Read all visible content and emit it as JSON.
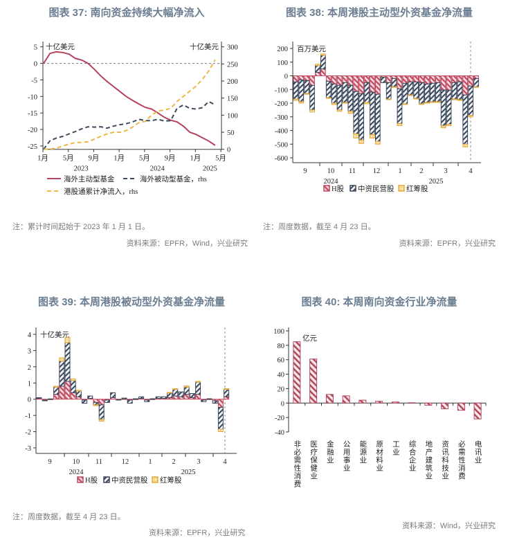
{
  "titles": [
    "图表 37: 南向资金持续大幅净流入",
    "图表 38: 本周港股主动型外资基金净流量",
    "图表 39: 本周港股被动型外资基金净流量",
    "图表 40: 本周南向资金行业净流量"
  ],
  "notes": {
    "c37_note": "注：累计时间起始于 2023 年 1 月 1 日。",
    "c37_source": "资料来源：EPFR，Wind，兴业研究",
    "c38_note": "注：周度数据，截至 4 月 23 日。",
    "c38_source": "资料来源：EPFR，兴业研究",
    "c39_note": "注：周度数据，截至 4 月 23 日。",
    "c39_source": "资料来源：EPFR，兴业研究",
    "c40_source": "资料来源：Wind，兴业研究"
  },
  "colors": {
    "title": "#6b7d91",
    "red": "#b5415a",
    "navy": "#3d4a5e",
    "gold": "#f0b545",
    "h_share": "#c0485e",
    "mainland_private": "#3b4556",
    "red_chip": "#e0a83a"
  },
  "chart_data": [
    {
      "type": "line",
      "unit_left": "十亿美元",
      "unit_right": "十亿美元",
      "ylim_left": [
        -26,
        5
      ],
      "yticks_left": [
        5,
        0,
        -5,
        -10,
        -15,
        -20,
        -25
      ],
      "ylim_right": [
        0,
        300
      ],
      "yticks_right": [
        300,
        250,
        200,
        150,
        100,
        50,
        0
      ],
      "x": [
        "2023-01",
        "2023-02",
        "2023-03",
        "2023-04",
        "2023-05",
        "2023-06",
        "2023-07",
        "2023-08",
        "2023-09",
        "2023-10",
        "2023-11",
        "2023-12",
        "2024-01",
        "2024-02",
        "2024-03",
        "2024-04",
        "2024-05",
        "2024-06",
        "2024-07",
        "2024-08",
        "2024-09",
        "2024-10",
        "2024-11",
        "2024-12",
        "2025-01",
        "2025-02",
        "2025-03",
        "2025-04"
      ],
      "xtick_labels": [
        "1月",
        "5月",
        "9月",
        "1月",
        "5月",
        "9月",
        "1月",
        "5月"
      ],
      "year_labels": [
        "2023",
        "2024",
        "2025"
      ],
      "series": [
        {
          "name": "海外主动型基金",
          "axis": "left",
          "style": "solid",
          "values": [
            0,
            3,
            3.5,
            3.3,
            2.8,
            1.5,
            1.0,
            0,
            -1.8,
            -3.8,
            -5.5,
            -7,
            -8.5,
            -10,
            -11.2,
            -12.3,
            -13.3,
            -13.8,
            -15,
            -16.3,
            -17.2,
            -17.7,
            -19,
            -20.8,
            -21.5,
            -22.5,
            -23.5,
            -24.8
          ]
        },
        {
          "name": "海外被动型基金，rhs",
          "axis": "right",
          "style": "dashed",
          "values": [
            0,
            25,
            33,
            38,
            45,
            52,
            60,
            66,
            65,
            66,
            62,
            68,
            72,
            75,
            80,
            88,
            84,
            84,
            88,
            83,
            84,
            120,
            130,
            120,
            118,
            122,
            140,
            130
          ]
        },
        {
          "name": "港股通累计净流入，rhs",
          "axis": "right",
          "style": "dashed",
          "values": [
            0,
            1,
            3,
            10,
            15,
            20,
            20,
            22,
            30,
            38,
            45,
            50,
            50,
            55,
            65,
            78,
            82,
            100,
            112,
            115,
            120,
            140,
            155,
            170,
            185,
            205,
            230,
            262
          ]
        }
      ],
      "zero_line": true,
      "legend": "bottom"
    },
    {
      "type": "bar",
      "stacked": true,
      "unit": "百万美元",
      "ylim": [
        -600,
        200
      ],
      "yticks": [
        200,
        100,
        0,
        -100,
        -200,
        -300,
        -400,
        -500,
        -600
      ],
      "month_labels": [
        "9",
        "10",
        "11",
        "12",
        "1",
        "2",
        "3",
        "4"
      ],
      "year_labels": [
        "2024",
        "2025"
      ],
      "series": [
        {
          "name": "H股",
          "values": [
            -45,
            -30,
            -35,
            -70,
            25,
            50,
            -40,
            -60,
            -70,
            -50,
            -70,
            -115,
            -130,
            -50,
            -120,
            -135,
            -10,
            -50,
            -20,
            -95,
            -55,
            -45,
            -45,
            -50,
            -60,
            -55,
            -50,
            -105,
            -105,
            -50,
            -45,
            -140,
            -75,
            -20
          ]
        },
        {
          "name": "中资民营股",
          "values": [
            -125,
            -160,
            -95,
            -180,
            50,
            100,
            -120,
            -140,
            -180,
            -145,
            -190,
            -310,
            -340,
            -145,
            -310,
            -345,
            -40,
            -120,
            -60,
            -255,
            -150,
            -95,
            -120,
            -155,
            -135,
            -135,
            -140,
            -260,
            -250,
            -120,
            -130,
            -360,
            -215,
            -60
          ]
        },
        {
          "name": "红筹股",
          "values": [
            -10,
            -10,
            -5,
            -15,
            10,
            10,
            -5,
            -10,
            -10,
            -5,
            -15,
            -30,
            -25,
            -10,
            -25,
            -20,
            0,
            -5,
            -5,
            -15,
            -5,
            -5,
            -5,
            -5,
            -5,
            -5,
            -5,
            -15,
            -10,
            -5,
            -5,
            -20,
            -10,
            -5
          ]
        }
      ],
      "legend": "bottom"
    },
    {
      "type": "bar",
      "stacked": true,
      "unit": "十亿美元",
      "ylim": [
        -3,
        4
      ],
      "yticks": [
        4,
        3,
        2,
        1,
        0,
        -1,
        -2,
        -3
      ],
      "month_labels": [
        "9",
        "10",
        "11",
        "12",
        "1",
        "2",
        "3",
        "4"
      ],
      "year_labels": [
        "2024",
        "2025"
      ],
      "series": [
        {
          "name": "H股",
          "values": [
            0.05,
            -0.05,
            0.01,
            0.3,
            0.8,
            1.1,
            0.4,
            0.15,
            -0.05,
            0.05,
            -0.2,
            -0.35,
            -0.05,
            0.1,
            -0.02,
            0.02,
            -0.05,
            0.01,
            0.05,
            -0.05,
            0.01,
            0.05,
            0.05,
            0.1,
            0.2,
            0.15,
            0.3,
            0.1,
            0.3,
            -0.05,
            0.01,
            -0.1,
            -0.5,
            0.15
          ]
        },
        {
          "name": "中资民营股",
          "values": [
            0.05,
            -0.05,
            0.01,
            0.45,
            1.55,
            2.4,
            0.75,
            0.35,
            -0.2,
            0.15,
            -0.15,
            -0.9,
            -0.15,
            0.3,
            -0.03,
            0.05,
            -0.2,
            0.02,
            0.1,
            -0.1,
            0.02,
            0.1,
            0.1,
            0.3,
            0.4,
            0.3,
            0.45,
            0.25,
            0.75,
            -0.1,
            0.02,
            -0.15,
            -1.35,
            0.45
          ]
        },
        {
          "name": "红筹股",
          "values": [
            0,
            0,
            0,
            0.05,
            0.2,
            0.3,
            0.1,
            0.05,
            0,
            0,
            -0.05,
            -0.1,
            0,
            0,
            0,
            0,
            0,
            0,
            0,
            0,
            0,
            0,
            0,
            0.02,
            0.05,
            0,
            0.07,
            0,
            0.05,
            0,
            0,
            0,
            -0.15,
            0.05
          ]
        }
      ],
      "legend": "bottom"
    },
    {
      "type": "bar",
      "unit": "亿元",
      "ylim": [
        -40,
        100
      ],
      "yticks": [
        100,
        80,
        60,
        40,
        20,
        0,
        -20,
        -40
      ],
      "categories": [
        "非必需性消费",
        "医疗保健业",
        "金融业",
        "公用事业",
        "能源业",
        "原材料业",
        "工业",
        "综合企业",
        "地产建筑业",
        "资讯科技业",
        "必需性消费",
        "电讯业"
      ],
      "values": [
        85,
        61,
        12,
        10,
        4,
        2.5,
        1.5,
        0.5,
        -3,
        -8,
        -10,
        -22
      ]
    }
  ]
}
